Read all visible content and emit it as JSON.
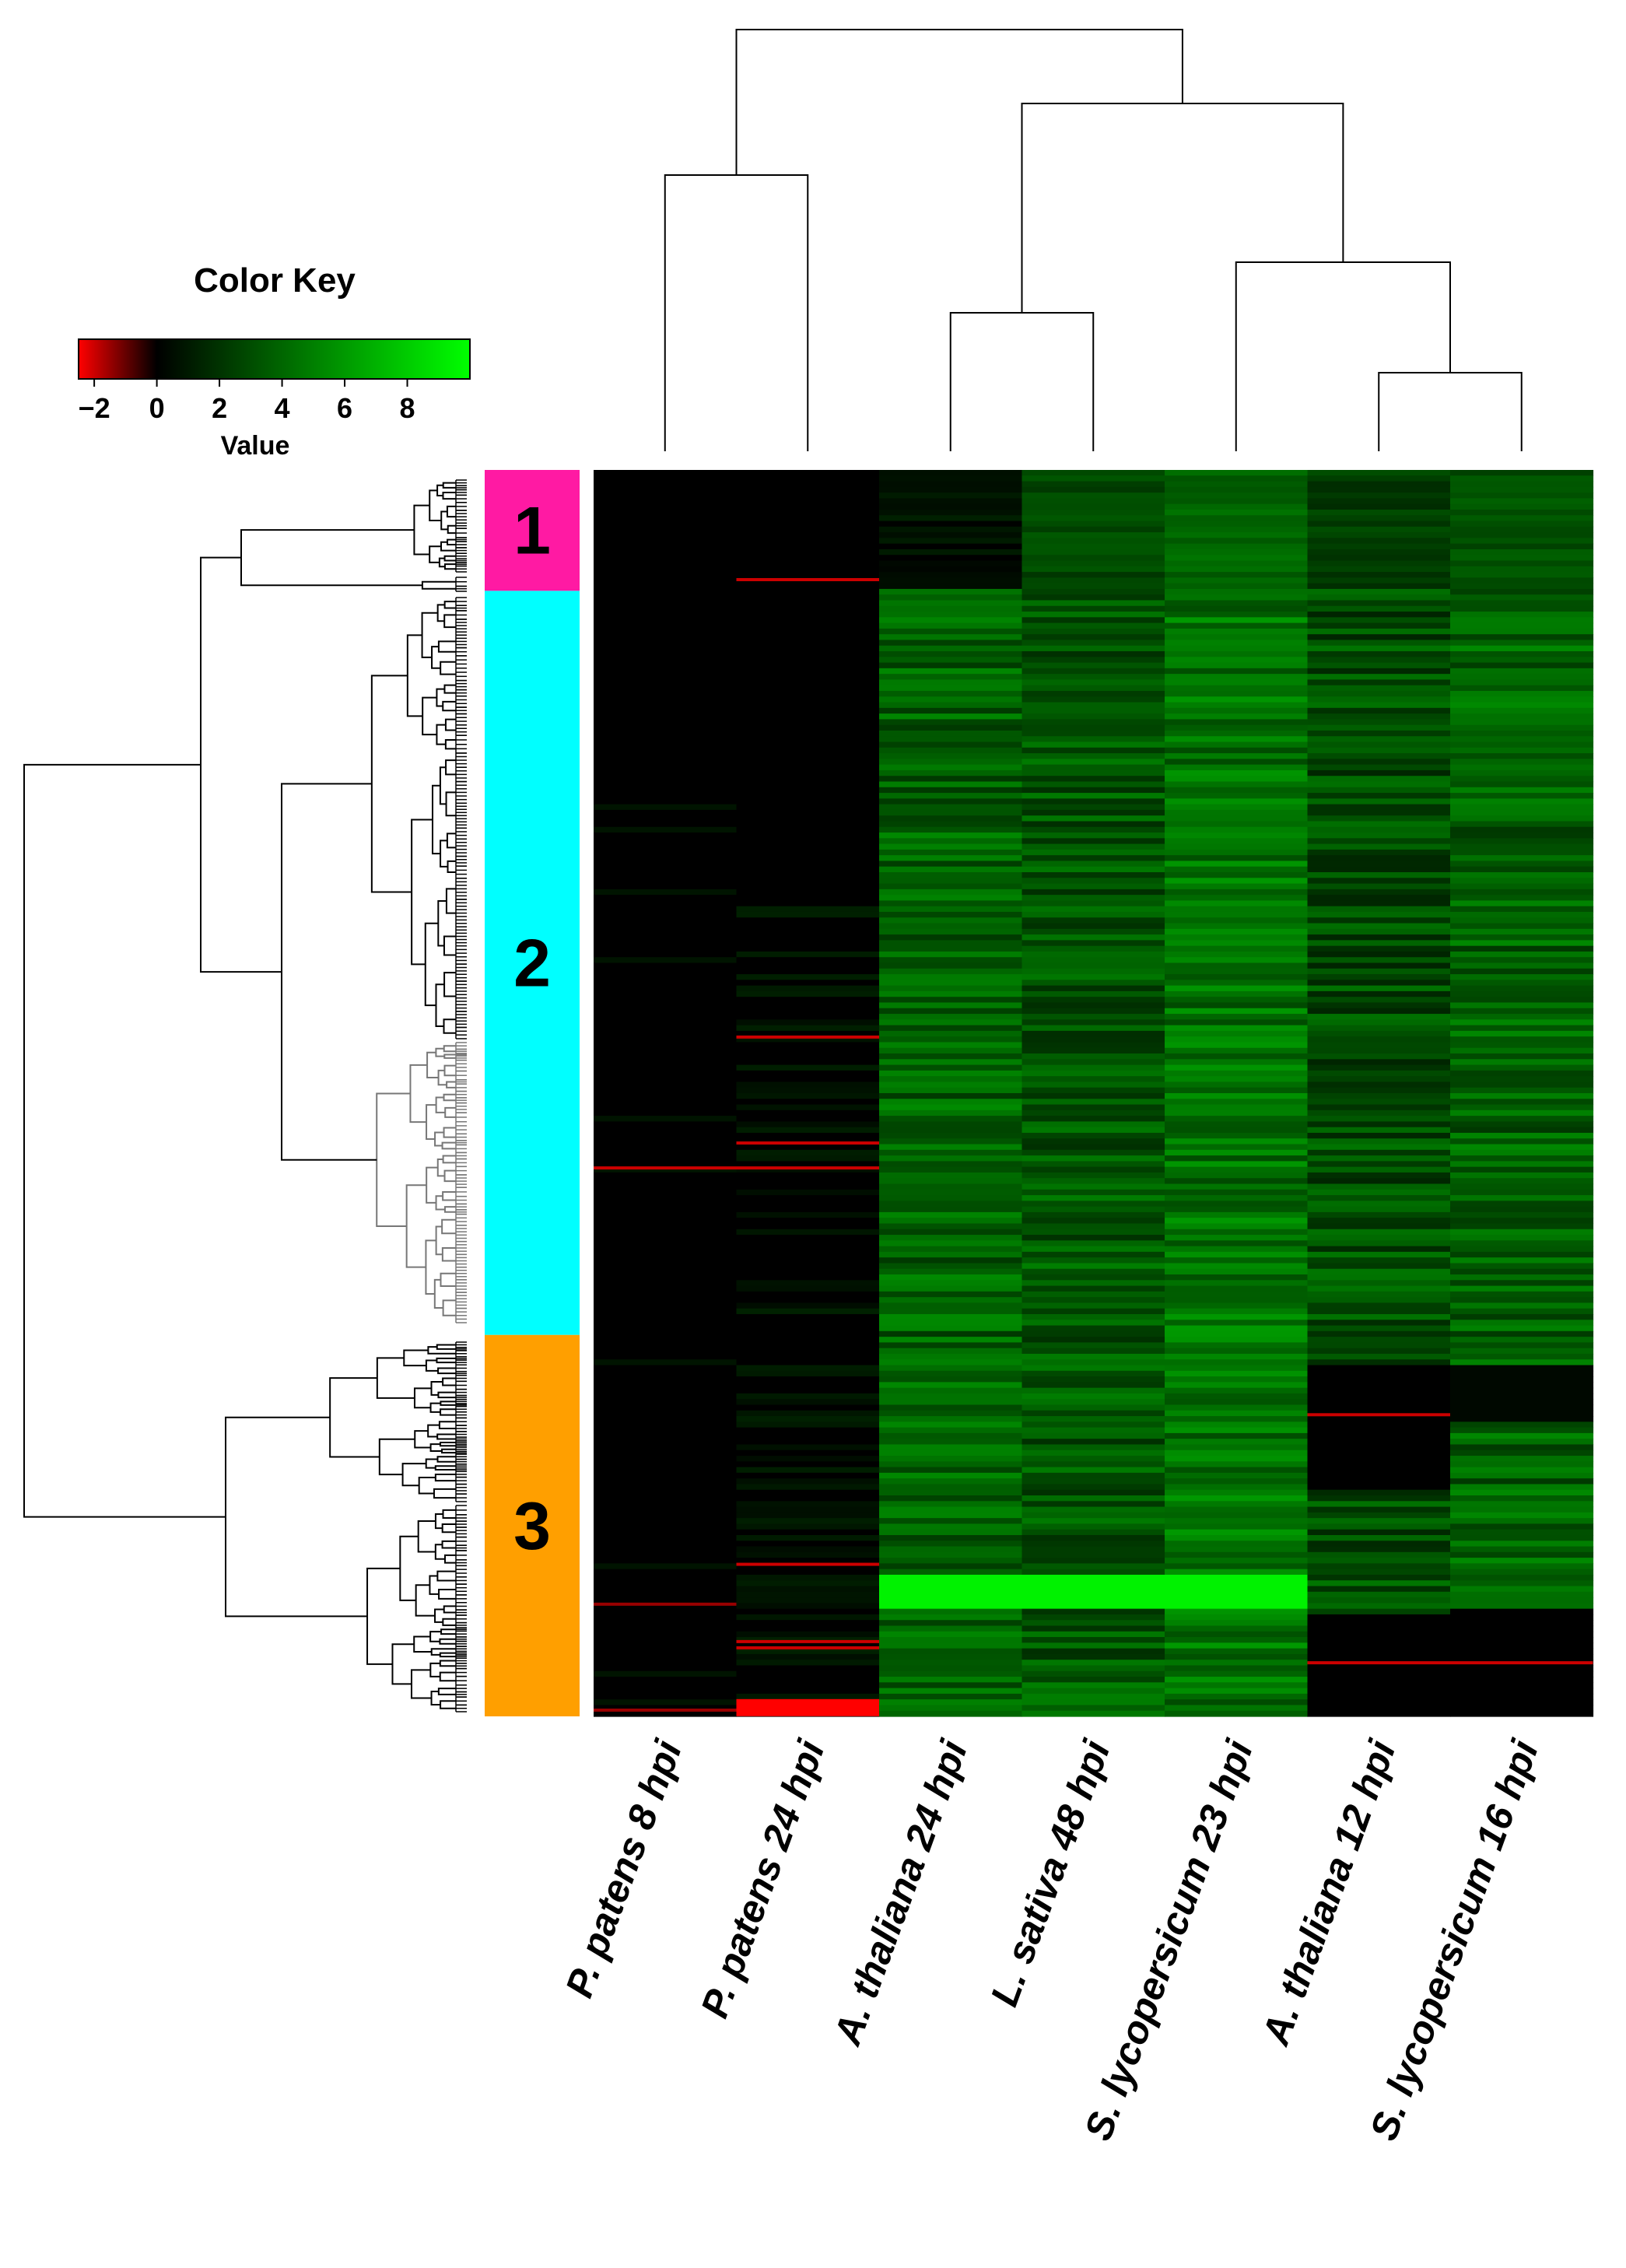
{
  "chart_data": {
    "type": "heatmap",
    "color_key": {
      "title": "Color Key",
      "xlabel": "Value",
      "ticks": [
        "-2",
        "0",
        "2",
        "4",
        "6",
        "8"
      ],
      "range": [
        -2.5,
        10
      ],
      "low_color": "#ff0000",
      "mid_color": "#000000",
      "high_color": "#00ff00"
    },
    "columns": [
      {
        "label": "P. patens 8 hpi",
        "mean": 0.0
      },
      {
        "label": "P. patens 24 hpi",
        "mean": 0.4
      },
      {
        "label": "A. thaliana 24 hpi",
        "mean": 3.8
      },
      {
        "label": "L. sativa 48 hpi",
        "mean": 3.4
      },
      {
        "label": "S. lycopersicum 23 hpi",
        "mean": 4.5
      },
      {
        "label": "A. thaliana 12 hpi",
        "mean": 3.0
      },
      {
        "label": "S. lycopersicum 16 hpi",
        "mean": 3.8
      }
    ],
    "clusters": [
      {
        "label": "1",
        "color": "#ff1aa3",
        "row_fraction": 0.097
      },
      {
        "label": "2",
        "color": "#00ffff",
        "row_fraction": 0.597
      },
      {
        "label": "3",
        "color": "#ff9f00",
        "row_fraction": 0.306
      }
    ],
    "highlights": [
      {
        "column": "P. patens 24 hpi",
        "row_position": 0.088,
        "value": -2
      },
      {
        "column": "P. patens 24 hpi",
        "row_position": 0.455,
        "value": -2
      },
      {
        "column": "P. patens 24 hpi",
        "row_position": 0.54,
        "value": -2
      },
      {
        "column": "P. patens 24 hpi",
        "row_position": 0.56,
        "value": -2
      },
      {
        "column": "P. patens 24 hpi",
        "row_position": 0.878,
        "value": -2
      },
      {
        "column": "P. patens 24 hpi",
        "row_position": 0.94,
        "value": -2
      },
      {
        "column": "P. patens 24 hpi",
        "row_position": 0.945,
        "value": -2
      },
      {
        "column": "P. patens 24 hpi",
        "row_position": 0.993,
        "value": -2.5
      },
      {
        "column": "P. patens 8 hpi",
        "row_position": 0.56,
        "value": -2
      },
      {
        "column": "P. patens 8 hpi",
        "row_position": 0.91,
        "value": -1.5
      },
      {
        "column": "P. patens 8 hpi",
        "row_position": 0.995,
        "value": -1.5
      },
      {
        "column": "A. thaliana 12 hpi",
        "row_position": 0.758,
        "value": -2
      },
      {
        "column": "A. thaliana 12 hpi",
        "row_position": 0.957,
        "value": -2
      },
      {
        "column": "S. lycopersicum 16 hpi",
        "row_position": 0.957,
        "value": -2
      }
    ]
  }
}
